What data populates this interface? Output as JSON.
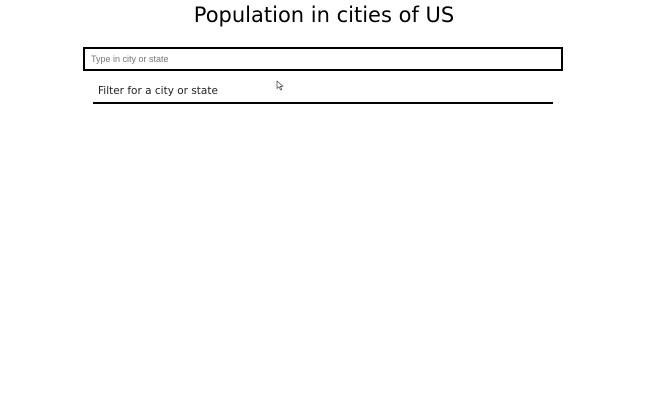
{
  "header": {
    "title": "Population in cities of US"
  },
  "search": {
    "placeholder": "Type in city or state",
    "value": ""
  },
  "suggestions": {
    "items": [
      {
        "label": "Filter for a city or state"
      }
    ]
  },
  "icons": {
    "cursor": "mouse-pointer-icon"
  },
  "colors": {
    "background": "#ffffff",
    "border": "#000000",
    "text": "#000000"
  }
}
